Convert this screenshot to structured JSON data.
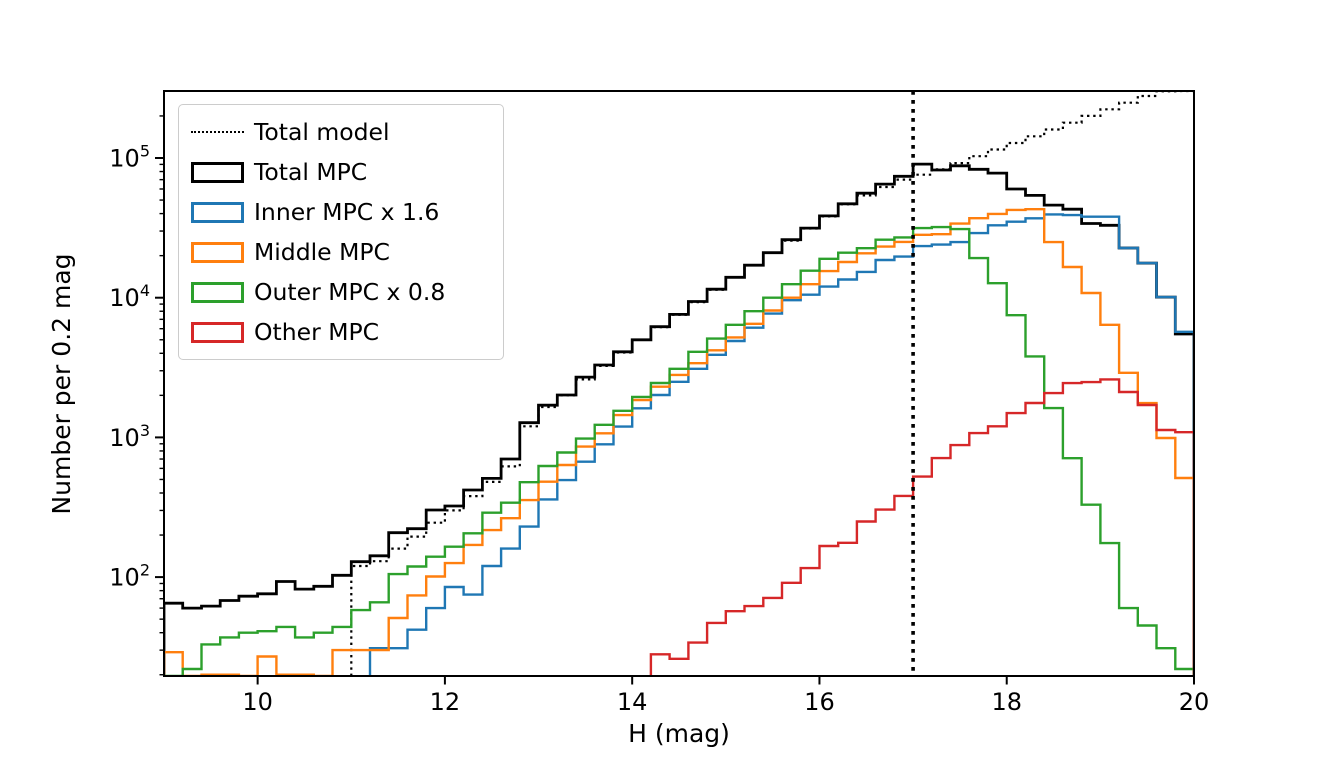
{
  "chart_data": {
    "type": "step-histogram-log",
    "title": "",
    "xlabel": "H (mag)",
    "ylabel": "Number per 0.2 mag",
    "xlim": [
      9,
      20
    ],
    "x_major_ticks": [
      10,
      12,
      14,
      16,
      18,
      20
    ],
    "y_major_tick_exponents": [
      2,
      3,
      4,
      5
    ],
    "y_log_minor_ticks": true,
    "grid": false,
    "legend_position": "upper-left",
    "bin_width": 0.2,
    "vline": {
      "x": 17,
      "style": "dotted",
      "color": "#000000"
    },
    "series": [
      {
        "name": "Total model",
        "color": "#000000",
        "style": "dotted",
        "h_start": 11.0,
        "close_end": false,
        "values": [
          120,
          130,
          160,
          195,
          245,
          300,
          380,
          480,
          620,
          1200,
          1650,
          2000,
          2600,
          3250,
          4050,
          5000,
          6150,
          7550,
          9300,
          11400,
          14000,
          17100,
          21000,
          25600,
          31300,
          38200,
          46600,
          54000,
          62000,
          70000,
          76000,
          83000,
          92000,
          103000,
          115000,
          128000,
          143000,
          160000,
          179000,
          200000,
          223000,
          249000,
          278000,
          300000,
          302000
        ]
      },
      {
        "name": "Total MPC",
        "color": "#000000",
        "style": "solid",
        "h_start": 9.0,
        "close_end": true,
        "values": [
          65,
          60,
          62,
          68,
          73,
          76,
          93,
          82,
          86,
          103,
          129,
          142,
          208,
          222,
          302,
          323,
          420,
          509,
          700,
          1274,
          1700,
          2013,
          2700,
          3300,
          4100,
          5000,
          6200,
          7600,
          9400,
          11500,
          14000,
          17100,
          21000,
          26000,
          31500,
          38500,
          47000,
          56000,
          65000,
          74000,
          90500,
          82000,
          88000,
          83000,
          78000,
          60000,
          54000,
          46000,
          43000,
          34000,
          33000,
          22700,
          17700,
          10100,
          5500
        ]
      },
      {
        "name": "Inner MPC x 1.6",
        "color": "#1f77b4",
        "style": "solid",
        "h_start": 11.2,
        "close_end": true,
        "values": [
          31,
          31,
          42,
          60,
          85,
          75,
          120,
          160,
          230,
          360,
          495,
          670,
          893,
          1194,
          1616,
          2013,
          2500,
          3100,
          3900,
          4900,
          6100,
          7700,
          9600,
          10500,
          12000,
          13500,
          15300,
          18600,
          19700,
          23400,
          24000,
          25000,
          29000,
          33000,
          35000,
          37000,
          39500,
          39000,
          38000,
          38000,
          22700,
          17700,
          10100,
          5700
        ]
      },
      {
        "name": "Middle MPC",
        "color": "#ff7f0e",
        "style": "solid",
        "h_start": 9.0,
        "close_end": true,
        "values": [
          29,
          0,
          20,
          20,
          0,
          27,
          20,
          20,
          0,
          30,
          30,
          30,
          51,
          74,
          101,
          126,
          170,
          217,
          264,
          356,
          482,
          635,
          859,
          1070,
          1445,
          1852,
          2307,
          2800,
          3400,
          4200,
          5200,
          6500,
          8100,
          10000,
          12500,
          15500,
          18000,
          20800,
          23200,
          25100,
          28200,
          28500,
          33900,
          37100,
          39800,
          42500,
          43000,
          25000,
          16600,
          10800,
          6400,
          2900,
          1760,
          990,
          512
        ]
      },
      {
        "name": "Outer MPC x 0.8",
        "color": "#2ca02c",
        "style": "solid",
        "h_start": 9.0,
        "close_end": true,
        "values": [
          0,
          22,
          33,
          37,
          40,
          41,
          44,
          37,
          40,
          44,
          58,
          66,
          105,
          119,
          140,
          165,
          206,
          289,
          341,
          478,
          624,
          780,
          980,
          1230,
          1550,
          1950,
          2450,
          3100,
          4100,
          5100,
          6400,
          8000,
          10000,
          12500,
          15600,
          19000,
          21000,
          22600,
          26000,
          27000,
          31500,
          32000,
          31000,
          19200,
          12700,
          7500,
          3800,
          1620,
          710,
          330,
          175,
          60,
          45,
          31,
          22
        ]
      },
      {
        "name": "Other MPC",
        "color": "#d62728",
        "style": "solid",
        "h_start": 14.2,
        "close_end": true,
        "values": [
          28,
          26,
          34,
          47,
          57,
          62,
          71,
          91,
          116,
          167,
          176,
          250,
          304,
          381,
          524,
          711,
          881,
          1074,
          1200,
          1493,
          1762,
          2076,
          2449,
          2489,
          2600,
          2113,
          1706,
          1130,
          1090
        ]
      }
    ]
  },
  "legend": {
    "items": [
      {
        "label": "Total model",
        "color": "#000000",
        "swatch": "dotted-line"
      },
      {
        "label": "Total MPC",
        "color": "#000000",
        "swatch": "rect"
      },
      {
        "label": "Inner MPC x 1.6",
        "color": "#1f77b4",
        "swatch": "rect"
      },
      {
        "label": "Middle MPC",
        "color": "#ff7f0e",
        "swatch": "rect"
      },
      {
        "label": "Outer MPC x 0.8",
        "color": "#2ca02c",
        "swatch": "rect"
      },
      {
        "label": "Other MPC",
        "color": "#d62728",
        "swatch": "rect"
      }
    ]
  },
  "colors": {
    "frame": "#000000",
    "background": "#ffffff",
    "legend_border": "#cccccc"
  }
}
